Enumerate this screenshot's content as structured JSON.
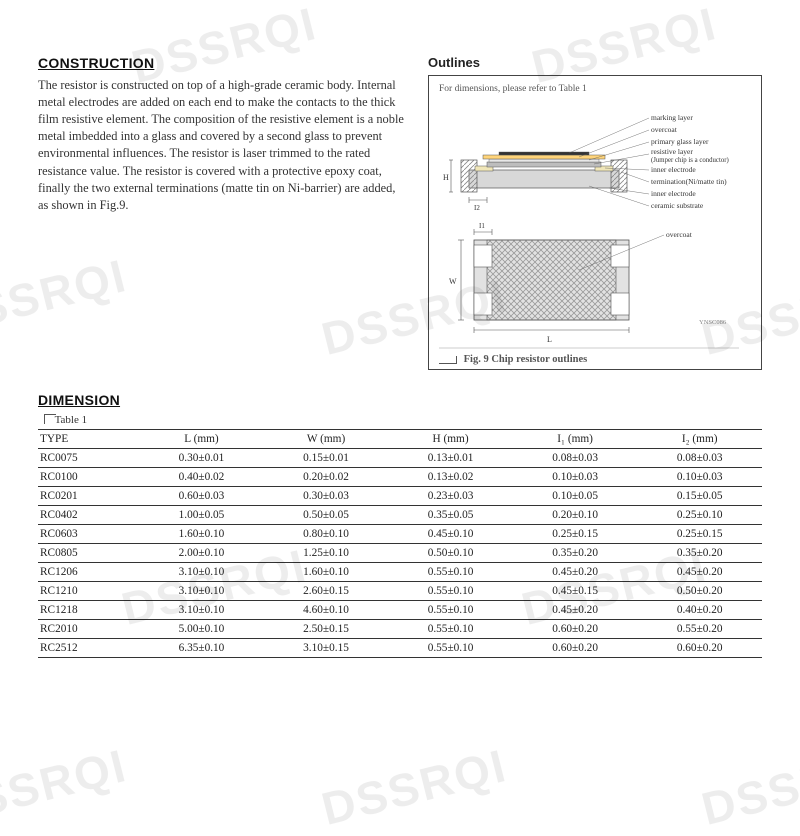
{
  "watermark_text": "DSSRQI",
  "headings": {
    "construction": "CONSTRUCTION",
    "outlines": "Outlines",
    "dimension": "DIMENSION",
    "table_label": "Table 1"
  },
  "construction_body": "The resistor is constructed on top of a high-grade ceramic body. Internal metal electrodes are added on each end to make the contacts to the thick film resistive element. The composition of the resistive element is a noble metal imbedded into a glass and covered by a second glass to prevent environmental influences. The resistor is laser trimmed to the rated resistance value. The resistor is covered with a protective epoxy coat, finally the two external terminations (matte tin on Ni-barrier) are added, as shown in Fig.9.",
  "outline_note": "For dimensions, please refer to Table 1",
  "fig_caption": "Fig. 9   Chip resistor outlines",
  "outline_labels": {
    "marking_layer": "marking layer",
    "overcoat": "overcoat",
    "primary_glass": "primary glass layer",
    "resistive_layer": "resistive layer",
    "jumper_note": "(Jumper chip is a conductor)",
    "inner_electrode": "inner electrode",
    "termination": "termination(Ni/matte tin)",
    "inner_electrode2": "inner electrode",
    "ceramic_substrate": "ceramic substrate",
    "overcoat2": "overcoat",
    "ynsc": "YNSC086"
  },
  "dim_markers": {
    "H": "H",
    "I2": "I2",
    "I1": "I1",
    "W": "W",
    "L": "L"
  },
  "table": {
    "columns": [
      "TYPE",
      "L (mm)",
      "W (mm)",
      "H (mm)",
      "I₁ (mm)",
      "I₂ (mm)"
    ],
    "rows": [
      [
        "RC0075",
        "0.30±0.01",
        "0.15±0.01",
        "0.13±0.01",
        "0.08±0.03",
        "0.08±0.03"
      ],
      [
        "RC0100",
        "0.40±0.02",
        "0.20±0.02",
        "0.13±0.02",
        "0.10±0.03",
        "0.10±0.03"
      ],
      [
        "RC0201",
        "0.60±0.03",
        "0.30±0.03",
        "0.23±0.03",
        "0.10±0.05",
        "0.15±0.05"
      ],
      [
        "RC0402",
        "1.00±0.05",
        "0.50±0.05",
        "0.35±0.05",
        "0.20±0.10",
        "0.25±0.10"
      ],
      [
        "RC0603",
        "1.60±0.10",
        "0.80±0.10",
        "0.45±0.10",
        "0.25±0.15",
        "0.25±0.15"
      ],
      [
        "RC0805",
        "2.00±0.10",
        "1.25±0.10",
        "0.50±0.10",
        "0.35±0.20",
        "0.35±0.20"
      ],
      [
        "RC1206",
        "3.10±0.10",
        "1.60±0.10",
        "0.55±0.10",
        "0.45±0.20",
        "0.45±0.20"
      ],
      [
        "RC1210",
        "3.10±0.10",
        "2.60±0.15",
        "0.55±0.10",
        "0.45±0.15",
        "0.50±0.20"
      ],
      [
        "RC1218",
        "3.10±0.10",
        "4.60±0.10",
        "0.55±0.10",
        "0.45±0.20",
        "0.40±0.20"
      ],
      [
        "RC2010",
        "5.00±0.10",
        "2.50±0.15",
        "0.55±0.10",
        "0.60±0.20",
        "0.55±0.20"
      ],
      [
        "RC2512",
        "6.35±0.10",
        "3.10±0.15",
        "0.55±0.10",
        "0.60±0.20",
        "0.60±0.20"
      ]
    ]
  },
  "colors": {
    "text": "#222222",
    "border": "#333333",
    "watermark": "rgba(0,0,0,0.07)",
    "diagram_gray": "#c8c8c8",
    "diagram_dark": "#888888",
    "hatch": "#a0a0a0"
  }
}
